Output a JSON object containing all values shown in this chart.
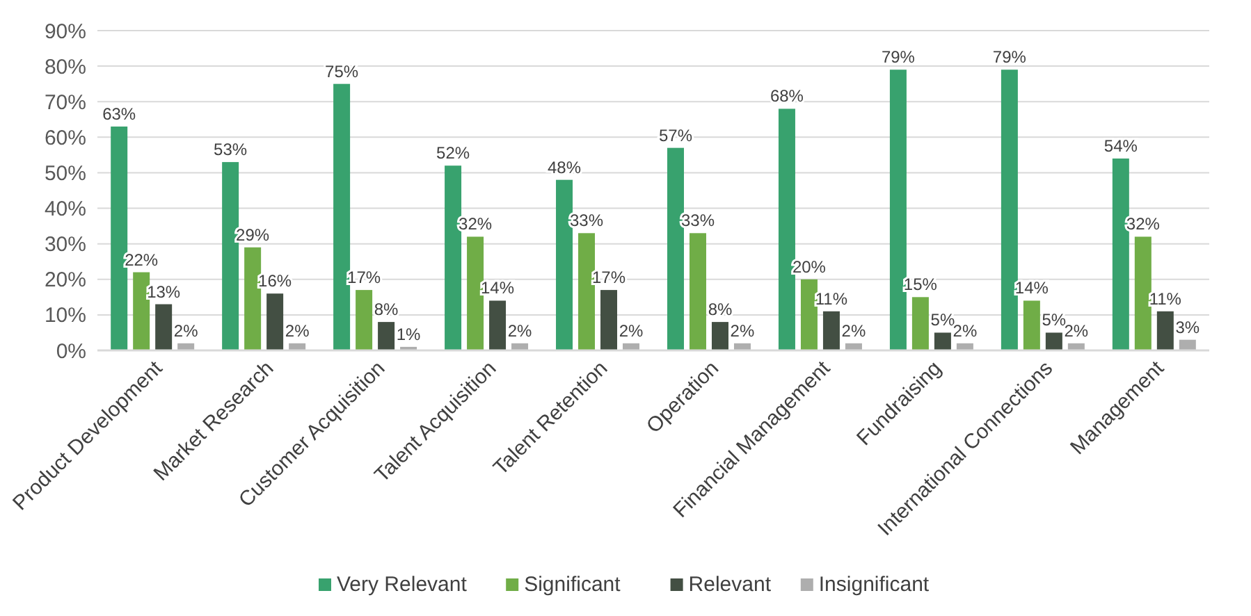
{
  "chart_data": {
    "type": "bar",
    "categories": [
      "Product Development",
      "Market Research",
      "Customer Acquisition",
      "Talent Acquisition",
      "Talent Retention",
      "Operation",
      "Financial Management",
      "Fundraising",
      "International Connections",
      "Management"
    ],
    "series": [
      {
        "name": "Very Relevant",
        "color": "#38a26e",
        "values": [
          63,
          53,
          75,
          52,
          48,
          57,
          68,
          79,
          79,
          54
        ],
        "value_labels": [
          "63%",
          "53%",
          "75%",
          "52%",
          "48%",
          "57%",
          "68%",
          "79%",
          "79%",
          "54%"
        ]
      },
      {
        "name": "Significant",
        "color": "#70ad47",
        "values": [
          22,
          29,
          17,
          32,
          33,
          33,
          20,
          15,
          14,
          32
        ],
        "value_labels": [
          "22%",
          "29%",
          "17%",
          "32%",
          "33%",
          "33%",
          "20%",
          "15%",
          "14%",
          "32%"
        ]
      },
      {
        "name": "Relevant",
        "color": "#434f43",
        "values": [
          13,
          16,
          8,
          14,
          17,
          8,
          11,
          5,
          5,
          11
        ],
        "value_labels": [
          "13%",
          "16%",
          "8%",
          "14%",
          "17%",
          "8%",
          "11%",
          "5%",
          "5%",
          "11%"
        ]
      },
      {
        "name": "Insignificant",
        "color": "#aeaeae",
        "values": [
          2,
          2,
          1,
          2,
          2,
          2,
          2,
          2,
          2,
          3
        ],
        "value_labels": [
          "2%",
          "2%",
          "1%",
          "2%",
          "2%",
          "2%",
          "2%",
          "2%",
          "2%",
          "3%"
        ]
      }
    ],
    "ylim": [
      0,
      90
    ],
    "yticks": [
      {
        "value": 0,
        "label": "0%"
      },
      {
        "value": 10,
        "label": "10%"
      },
      {
        "value": 20,
        "label": "20%"
      },
      {
        "value": 30,
        "label": "30%"
      },
      {
        "value": 40,
        "label": "40%"
      },
      {
        "value": 50,
        "label": "50%"
      },
      {
        "value": 60,
        "label": "60%"
      },
      {
        "value": 70,
        "label": "70%"
      },
      {
        "value": 80,
        "label": "80%"
      },
      {
        "value": 90,
        "label": "90%"
      }
    ],
    "grid": "y",
    "legend": "bottom"
  }
}
